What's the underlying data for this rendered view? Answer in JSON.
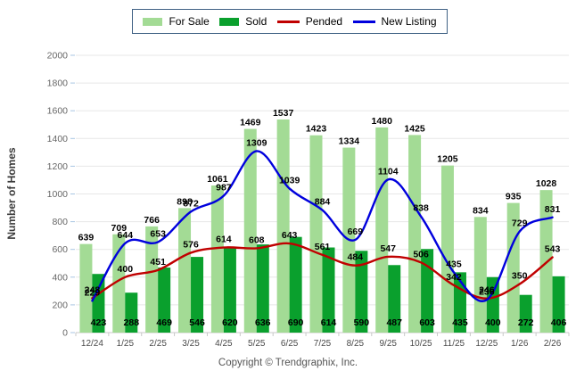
{
  "legend": {
    "items": [
      {
        "label": "For Sale",
        "type": "bar",
        "color": "#a3db95"
      },
      {
        "label": "Sold",
        "type": "bar",
        "color": "#0aa02d"
      },
      {
        "label": "Pended",
        "type": "line",
        "color": "#c00000"
      },
      {
        "label": "New Listing",
        "type": "line",
        "color": "#0000dd"
      }
    ]
  },
  "chart_data": {
    "type": "bar+line",
    "title": "",
    "xlabel": "",
    "ylabel": "Number of Homes",
    "ylim": [
      0,
      2000
    ],
    "ytick_step": 200,
    "grid": true,
    "legend_position": "top-center",
    "categories": [
      "12/24",
      "1/25",
      "2/25",
      "3/25",
      "4/25",
      "5/25",
      "6/25",
      "7/25",
      "8/25",
      "9/25",
      "10/25",
      "11/25",
      "12/25",
      "1/26",
      "2/26"
    ],
    "series": [
      {
        "name": "For Sale",
        "type": "bar",
        "color": "#a3db95",
        "values": [
          639,
          709,
          766,
          898,
          1061,
          1469,
          1537,
          1423,
          1334,
          1480,
          1425,
          1205,
          834,
          935,
          1028
        ]
      },
      {
        "name": "Sold",
        "type": "bar",
        "color": "#0aa02d",
        "values": [
          423,
          288,
          469,
          546,
          620,
          636,
          690,
          614,
          590,
          487,
          603,
          435,
          400,
          272,
          406
        ]
      },
      {
        "name": "Pended",
        "type": "line",
        "color": "#c00000",
        "values": [
          248,
          400,
          451,
          576,
          614,
          608,
          643,
          561,
          484,
          547,
          506,
          342,
          246,
          350,
          543
        ]
      },
      {
        "name": "New Listing",
        "type": "line",
        "color": "#0000dd",
        "values": [
          229,
          644,
          653,
          872,
          987,
          1309,
          1039,
          884,
          669,
          1104,
          838,
          435,
          236,
          729,
          831
        ]
      }
    ]
  },
  "footer": {
    "copyright": "Copyright © Trendgraphix, Inc."
  }
}
